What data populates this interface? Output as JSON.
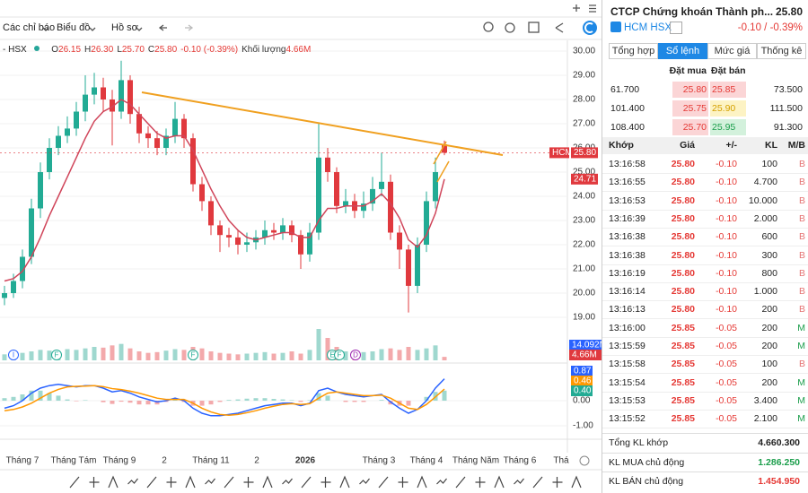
{
  "toolbar": {
    "indicators": "Các chỉ báo",
    "chart": "Biểu đồ",
    "profile": "Hồ sơ"
  },
  "legend": {
    "symbol": "- HSX",
    "items": [
      {
        "key": "O",
        "value": "26.15"
      },
      {
        "key": "H",
        "value": "26.30"
      },
      {
        "key": "L",
        "value": "25.70"
      },
      {
        "key": "C",
        "value": "25.80"
      }
    ],
    "change": "-0.10 (-0.39%)",
    "volume_label": "Khối lượng",
    "volume": "4.66M"
  },
  "chart_data": {
    "type": "candlestick",
    "open": [
      19.8,
      20.0,
      20.5,
      21.5,
      23.5,
      25.0,
      26.0,
      26.5,
      26.8,
      27.5,
      28.2,
      28.5,
      28.0,
      27.5,
      28.8,
      27.4,
      26.6,
      26.4,
      26.0,
      26.5,
      27.2,
      26.4,
      24.5,
      23.8,
      22.8,
      22.4,
      22.3,
      22.0,
      22.1,
      22.3,
      22.6,
      22.5,
      22.8,
      22.4,
      21.6,
      22.5,
      25.6,
      25.0,
      23.6,
      23.8,
      23.4,
      23.7,
      24.3,
      24.6,
      22.5,
      21.8,
      20.3,
      22.0,
      23.8,
      26.15
    ],
    "high": [
      20.3,
      20.8,
      21.8,
      23.9,
      25.4,
      26.4,
      26.9,
      27.3,
      27.9,
      29.0,
      29.1,
      28.9,
      28.4,
      29.6,
      29.0,
      27.7,
      26.9,
      26.7,
      26.8,
      27.9,
      27.4,
      26.6,
      24.8,
      24.0,
      23.0,
      22.7,
      22.6,
      22.5,
      22.6,
      23.0,
      22.9,
      23.1,
      23.0,
      22.6,
      22.9,
      27.0,
      26.0,
      25.2,
      24.3,
      24.1,
      24.2,
      24.8,
      25.8,
      24.9,
      22.8,
      22.0,
      22.3,
      24.2,
      25.6,
      26.3
    ],
    "low": [
      19.5,
      19.8,
      20.2,
      21.2,
      23.1,
      24.7,
      25.7,
      26.2,
      26.5,
      27.1,
      27.8,
      27.5,
      26.1,
      27.2,
      27.0,
      26.2,
      26.0,
      25.7,
      25.7,
      26.2,
      26.0,
      24.2,
      23.4,
      22.4,
      21.7,
      21.9,
      21.6,
      21.7,
      21.8,
      22.0,
      22.2,
      22.2,
      22.1,
      21.0,
      21.3,
      22.2,
      24.6,
      23.3,
      23.3,
      23.1,
      23.1,
      23.4,
      24.0,
      22.2,
      21.0,
      19.2,
      20.0,
      21.7,
      23.5,
      25.7
    ],
    "close": [
      20.0,
      20.5,
      21.5,
      23.5,
      25.0,
      26.0,
      26.5,
      26.8,
      27.5,
      28.2,
      28.5,
      28.0,
      27.5,
      28.8,
      27.4,
      26.6,
      26.4,
      26.0,
      26.5,
      27.2,
      26.4,
      24.5,
      23.8,
      22.8,
      22.4,
      22.3,
      22.0,
      22.1,
      22.3,
      22.6,
      22.5,
      22.8,
      22.4,
      21.6,
      22.5,
      25.6,
      25.0,
      23.6,
      23.8,
      23.4,
      23.7,
      24.3,
      24.6,
      22.5,
      21.8,
      20.3,
      22.0,
      23.8,
      25.0,
      25.8
    ],
    "ma": [
      20.5,
      20.6,
      20.9,
      21.5,
      22.3,
      23.2,
      24.0,
      24.8,
      25.6,
      26.4,
      27.1,
      27.5,
      27.7,
      28.0,
      27.8,
      27.4,
      27.0,
      26.6,
      26.4,
      26.5,
      26.5,
      25.9,
      25.1,
      24.3,
      23.6,
      23.0,
      22.6,
      22.3,
      22.2,
      22.3,
      22.4,
      22.5,
      22.5,
      22.3,
      22.3,
      23.0,
      23.5,
      23.5,
      23.6,
      23.6,
      23.6,
      23.8,
      24.1,
      23.7,
      23.1,
      22.2,
      21.9,
      22.4,
      23.3,
      24.71
    ],
    "ylim": [
      18.5,
      30.5
    ],
    "yticks": [
      {
        "value": 30,
        "label": "30.00"
      },
      {
        "value": 29,
        "label": "29.00"
      },
      {
        "value": 28,
        "label": "28.00"
      },
      {
        "value": 27,
        "label": "27.00"
      },
      {
        "value": 26,
        "label": "26.00"
      },
      {
        "value": 25,
        "label": "25.00"
      },
      {
        "value": 24,
        "label": "24.00"
      },
      {
        "value": 23,
        "label": "23.00"
      },
      {
        "value": 22,
        "label": "22.00"
      },
      {
        "value": 21,
        "label": "21.00"
      },
      {
        "value": 20,
        "label": "20.00"
      },
      {
        "value": 19,
        "label": "19.00"
      }
    ],
    "grid": true,
    "price_badge": {
      "label": "HCM",
      "value": "25.80"
    },
    "ma_badge": "24.71",
    "volume": {
      "values": [
        8,
        9,
        10,
        12,
        14,
        13,
        11,
        15,
        14,
        16,
        18,
        17,
        20,
        22,
        16,
        12,
        10,
        11,
        13,
        15,
        14,
        18,
        16,
        12,
        10,
        9,
        8,
        9,
        10,
        11,
        9,
        10,
        12,
        9,
        14,
        42,
        30,
        18,
        12,
        10,
        11,
        12,
        15,
        16,
        14,
        18,
        14,
        16,
        20,
        4.66
      ],
      "ylim": [
        0,
        60
      ],
      "badges": [
        "14.092M",
        "4.66M"
      ]
    },
    "macd": {
      "macd": [
        -0.3,
        -0.2,
        0.0,
        0.3,
        0.5,
        0.6,
        0.65,
        0.6,
        0.55,
        0.6,
        0.6,
        0.5,
        0.35,
        0.4,
        0.3,
        0.15,
        0.05,
        -0.05,
        0.0,
        0.1,
        0.0,
        -0.3,
        -0.5,
        -0.6,
        -0.6,
        -0.55,
        -0.5,
        -0.4,
        -0.3,
        -0.2,
        -0.15,
        -0.1,
        -0.1,
        -0.2,
        -0.1,
        0.4,
        0.5,
        0.35,
        0.25,
        0.2,
        0.15,
        0.2,
        0.25,
        -0.05,
        -0.3,
        -0.5,
        -0.35,
        0.0,
        0.5,
        0.87
      ],
      "signal": [
        -0.4,
        -0.35,
        -0.25,
        -0.1,
        0.1,
        0.3,
        0.45,
        0.55,
        0.57,
        0.58,
        0.6,
        0.56,
        0.48,
        0.44,
        0.38,
        0.3,
        0.2,
        0.1,
        0.05,
        0.05,
        0.05,
        -0.1,
        -0.3,
        -0.45,
        -0.55,
        -0.58,
        -0.55,
        -0.48,
        -0.4,
        -0.3,
        -0.22,
        -0.15,
        -0.12,
        -0.15,
        -0.12,
        0.1,
        0.3,
        0.35,
        0.3,
        0.25,
        0.2,
        0.2,
        0.22,
        0.1,
        -0.1,
        -0.3,
        -0.35,
        -0.15,
        0.15,
        0.46
      ],
      "hist": [
        0.1,
        0.15,
        0.25,
        0.4,
        0.4,
        0.3,
        0.2,
        0.05,
        -0.02,
        0.02,
        0.0,
        -0.06,
        -0.13,
        -0.04,
        -0.08,
        -0.15,
        -0.15,
        -0.15,
        -0.05,
        0.05,
        -0.05,
        -0.2,
        -0.2,
        -0.15,
        -0.05,
        0.03,
        0.05,
        0.08,
        0.1,
        0.1,
        0.07,
        0.05,
        0.02,
        -0.05,
        0.02,
        0.3,
        0.2,
        0.0,
        -0.05,
        -0.05,
        -0.05,
        0.0,
        0.03,
        -0.15,
        -0.2,
        -0.2,
        0.0,
        0.15,
        0.35,
        0.4
      ],
      "ylim": [
        -1.2,
        1.2
      ],
      "yticks": [
        {
          "value": 0,
          "label": "0.00"
        },
        {
          "value": -1,
          "label": "-1.00"
        }
      ],
      "badges": [
        "0.87",
        "0.46",
        "0.40"
      ]
    },
    "events": [
      "I",
      "F",
      "F",
      "E",
      "F",
      "D"
    ],
    "x_labels": [
      "Tháng 7",
      "Tháng Tám",
      "Tháng 9",
      "2",
      "Tháng 11",
      "2",
      "2026",
      "Tháng 3",
      "Tháng 4",
      "Tháng Năm",
      "Tháng 6",
      "Thá"
    ]
  },
  "quote": {
    "name": "CTCP Chứng khoán Thành ph...",
    "price": "25.80",
    "symbol": "HCM HSX",
    "change": "-0.10 / -0.39%"
  },
  "tabs": [
    "Tổng hợp",
    "Sổ lệnh",
    "Mức giá",
    "Thống kê"
  ],
  "orderbook": {
    "headers": [
      "Đặt mua",
      "Đặt bán"
    ],
    "rows": [
      [
        "61.700",
        "25.80",
        "25.85",
        "73.500"
      ],
      [
        "101.400",
        "25.75",
        "25.90",
        "111.500"
      ],
      [
        "108.400",
        "25.70",
        "25.95",
        "91.300"
      ]
    ]
  },
  "trades": {
    "headers": [
      "Khớp",
      "Giá",
      "+/-",
      "KL",
      "M/B"
    ],
    "rows": [
      [
        "13:16:58",
        "25.80",
        "-0.10",
        "100",
        "B"
      ],
      [
        "13:16:55",
        "25.80",
        "-0.10",
        "4.700",
        "B"
      ],
      [
        "13:16:53",
        "25.80",
        "-0.10",
        "10.000",
        "B"
      ],
      [
        "13:16:39",
        "25.80",
        "-0.10",
        "2.000",
        "B"
      ],
      [
        "13:16:38",
        "25.80",
        "-0.10",
        "600",
        "B"
      ],
      [
        "13:16:38",
        "25.80",
        "-0.10",
        "300",
        "B"
      ],
      [
        "13:16:19",
        "25.80",
        "-0.10",
        "800",
        "B"
      ],
      [
        "13:16:14",
        "25.80",
        "-0.10",
        "1.000",
        "B"
      ],
      [
        "13:16:13",
        "25.80",
        "-0.10",
        "200",
        "B"
      ],
      [
        "13:16:00",
        "25.85",
        "-0.05",
        "200",
        "M"
      ],
      [
        "13:15:59",
        "25.85",
        "-0.05",
        "200",
        "M"
      ],
      [
        "13:15:58",
        "25.85",
        "-0.05",
        "100",
        "B"
      ],
      [
        "13:15:54",
        "25.85",
        "-0.05",
        "200",
        "M"
      ],
      [
        "13:15:53",
        "25.85",
        "-0.05",
        "3.400",
        "M"
      ],
      [
        "13:15:52",
        "25.85",
        "-0.05",
        "2.100",
        "M"
      ]
    ]
  },
  "summary": [
    [
      "Tổng KL khớp",
      "4.660.300"
    ],
    [
      "KL MUA chủ động",
      "1.286.250"
    ],
    [
      "KL BÁN chủ động",
      "1.454.950"
    ]
  ]
}
